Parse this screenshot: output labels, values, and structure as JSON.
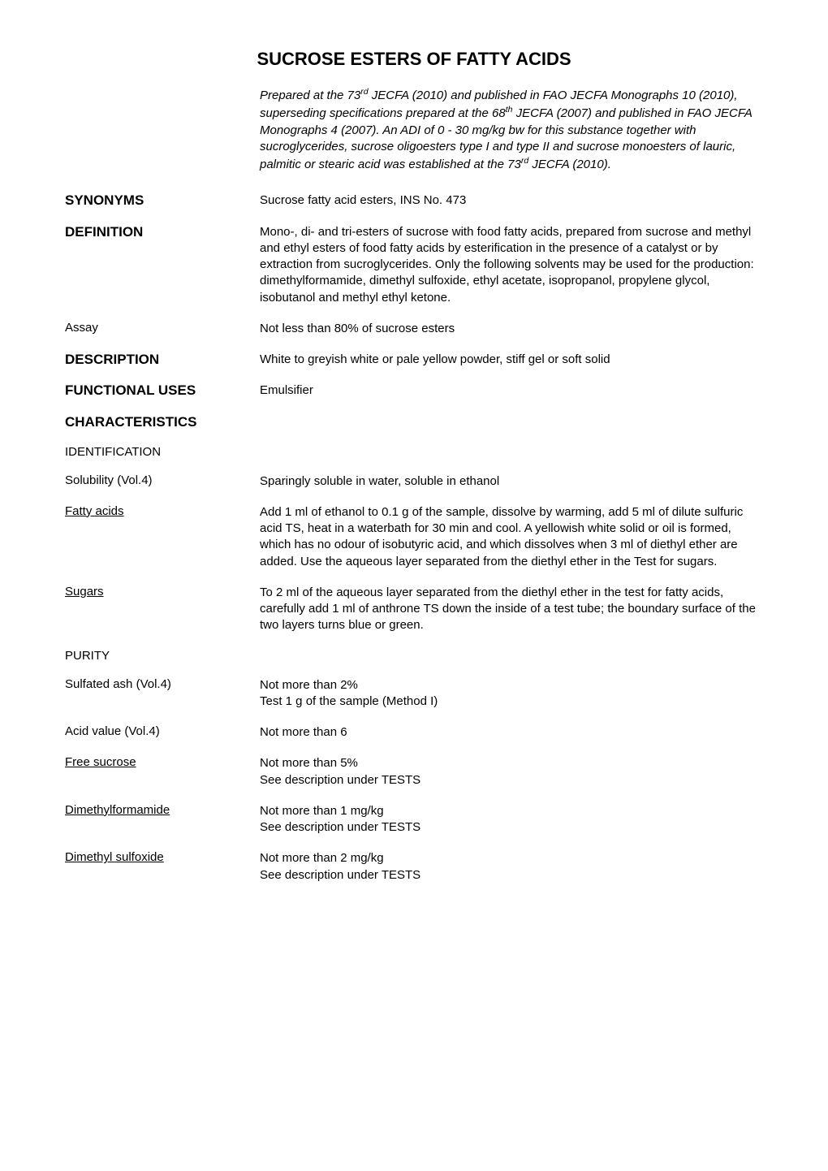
{
  "title": "SUCROSE ESTERS OF FATTY ACIDS",
  "intro": "Prepared at the 73rd JECFA (2010) and published in FAO JECFA Monographs 10 (2010), superseding specifications prepared at the 68th JECFA (2007) and published in FAO JECFA Monographs 4 (2007). An ADI of 0 - 30 mg/kg bw for this substance together with sucroglycerides, sucrose oligoesters type I and type II and sucrose monoesters of lauric, palmitic or stearic acid was established at the 73rd JECFA (2010).",
  "synonyms": {
    "label": "SYNONYMS",
    "value": "Sucrose fatty acid esters, INS No. 473"
  },
  "definition": {
    "label": "DEFINITION",
    "value": "Mono-, di- and tri-esters of sucrose with food fatty acids, prepared from sucrose and methyl and ethyl esters of food fatty acids by esterification in the presence of a catalyst or by extraction from sucroglycerides. Only the following solvents may be used for the production: dimethylformamide, dimethyl sulfoxide, ethyl acetate, isopropanol, propylene glycol, isobutanol and methyl ethyl ketone."
  },
  "assay": {
    "label": "Assay",
    "value": "Not less than 80% of sucrose esters"
  },
  "description": {
    "label": "DESCRIPTION",
    "value": "White to greyish white or pale yellow powder, stiff gel or soft solid"
  },
  "functional_uses": {
    "label": "FUNCTIONAL USES",
    "value": "Emulsifier"
  },
  "characteristics_header": "CHARACTERISTICS",
  "identification_header": "IDENTIFICATION",
  "solubility": {
    "label": "Solubility",
    "vol": " (Vol.4)",
    "value": "Sparingly soluble in water, soluble in ethanol"
  },
  "fatty_acids": {
    "label": "Fatty acids",
    "value": "Add 1 ml of ethanol to 0.1 g of the sample, dissolve by warming, add 5 ml of dilute sulfuric acid TS, heat in a waterbath for 30 min and cool. A yellowish white solid or oil is formed, which has no odour of isobutyric acid, and which dissolves when 3 ml of diethyl ether are added. Use the aqueous layer separated from the diethyl ether in the Test for sugars."
  },
  "sugars": {
    "label": "Sugars",
    "value": "To 2 ml of the aqueous layer separated from the diethyl ether in the test for fatty acids, carefully add 1 ml of anthrone TS down the inside of a test tube; the boundary surface of the two layers turns blue or green."
  },
  "purity_header": "PURITY",
  "sulfated_ash": {
    "label": "Sulfated ash",
    "vol": " (Vol.4)",
    "value1": "Not more than 2%",
    "value2": "Test 1 g of the sample (Method I)"
  },
  "acid_value": {
    "label": "Acid value",
    "vol": " (Vol.4)",
    "value": "Not more than 6"
  },
  "free_sucrose": {
    "label": "Free sucrose",
    "value1": "Not more than 5%",
    "value2": "See description under TESTS"
  },
  "dimethylformamide": {
    "label": "Dimethylformamide",
    "value1": "Not more than 1 mg/kg",
    "value2": "See description under TESTS"
  },
  "dimethyl_sulfoxide": {
    "label": "Dimethyl sulfoxide",
    "value1": "Not more than 2 mg/kg",
    "value2": "See description under TESTS"
  }
}
